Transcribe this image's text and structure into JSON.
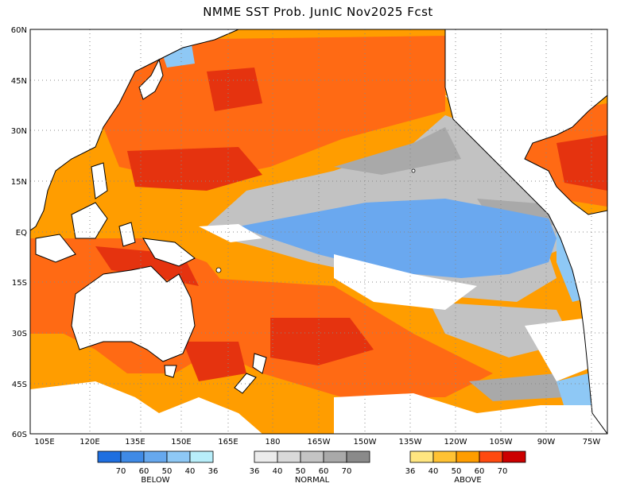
{
  "title": "NMME SST Prob. JunIC   Nov2025 Fcst",
  "lat_labels": [
    "60N",
    "45N",
    "30N",
    "15N",
    "EQ",
    "15S",
    "30S",
    "45S",
    "60S"
  ],
  "lon_labels": [
    "105E",
    "120E",
    "135E",
    "150E",
    "165E",
    "180",
    "165W",
    "150W",
    "135W",
    "120W",
    "105W",
    "90W",
    "75W"
  ],
  "legend": {
    "below": {
      "name": "BELOW",
      "ticks": [
        "70",
        "60",
        "50",
        "40",
        "36"
      ],
      "colors": [
        "#1f6fe0",
        "#3f8ae6",
        "#66a8ee",
        "#8ec8f5",
        "#b8eefa"
      ]
    },
    "normal": {
      "name": "NORMAL",
      "ticks": [
        "36",
        "40",
        "50",
        "60",
        "70"
      ],
      "colors": [
        "#ececec",
        "#d9d9d9",
        "#c4c4c4",
        "#a9a9a9",
        "#8a8a8a"
      ]
    },
    "above": {
      "name": "ABOVE",
      "ticks": [
        "36",
        "40",
        "50",
        "60",
        "70"
      ],
      "colors": [
        "#ffe680",
        "#ffc233",
        "#ff9d00",
        "#ff4a10",
        "#cc0000"
      ]
    }
  },
  "colors": {
    "land": "#ffffff",
    "above_main": "#ff9d00",
    "above_mid": "#ff6a14",
    "above_high": "#e5330f",
    "below_main": "#6aa8ef",
    "normal_main": "#c2c2c2"
  }
}
